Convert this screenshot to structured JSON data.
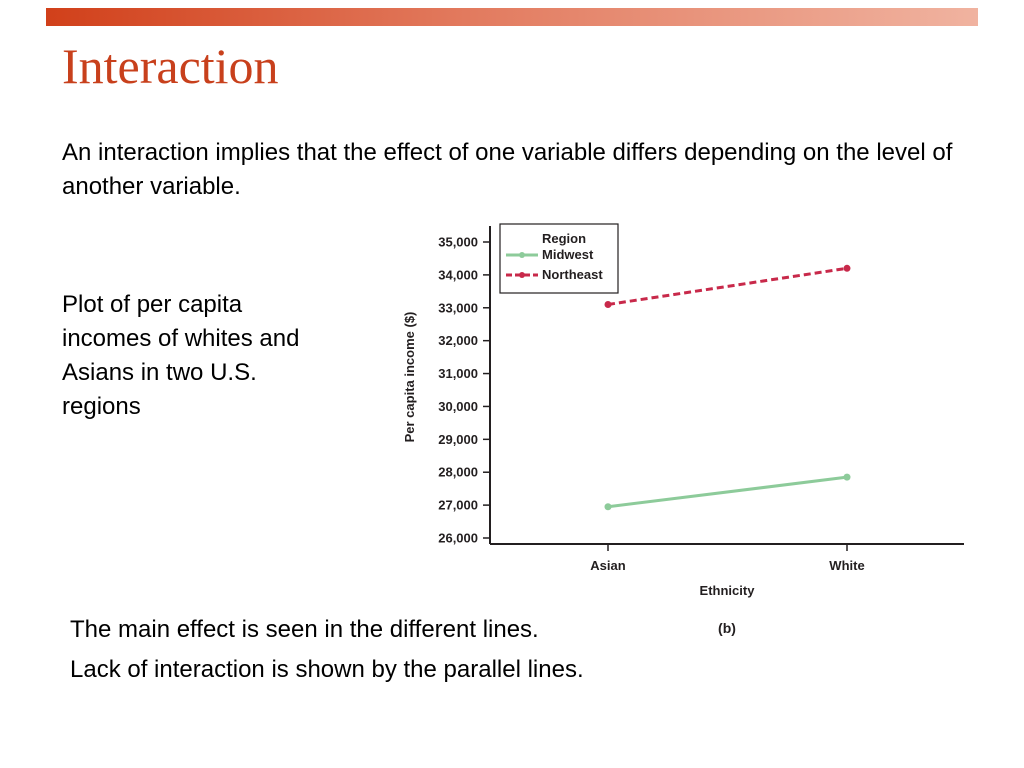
{
  "slide": {
    "title": "Interaction",
    "intro": "An interaction implies that the effect of one variable differs depending on the level of another variable.",
    "side_note": "Plot of per capita incomes of whites and Asians in two U.S. regions",
    "bullets": [
      "The main effect is seen in the different lines.",
      "Lack of interaction is shown by the parallel lines."
    ],
    "accent_colors": {
      "title": "#c8401c",
      "bar_start": "#d1401a",
      "bar_end": "#f0b3a0"
    }
  },
  "chart_data": {
    "type": "line",
    "categories": [
      "Asian",
      "White"
    ],
    "xlabel": "Ethnicity",
    "ylabel": "Per capita income ($)",
    "ylim": [
      26000,
      35000
    ],
    "yticks": [
      26000,
      27000,
      28000,
      29000,
      30000,
      31000,
      32000,
      33000,
      34000,
      35000
    ],
    "ytick_labels": [
      "26,000",
      "27,000",
      "28,000",
      "29,000",
      "30,000",
      "31,000",
      "32,000",
      "33,000",
      "34,000",
      "35,000"
    ],
    "legend": {
      "title": "Region",
      "placement": "top-left"
    },
    "panel_label": "(b)",
    "series": [
      {
        "name": "Midwest",
        "values": [
          26950,
          27850
        ],
        "color": "#8dcb9a",
        "style": "solid"
      },
      {
        "name": "Northeast",
        "values": [
          33100,
          34200
        ],
        "color": "#c8294a",
        "style": "dashed"
      }
    ],
    "grid": false
  }
}
